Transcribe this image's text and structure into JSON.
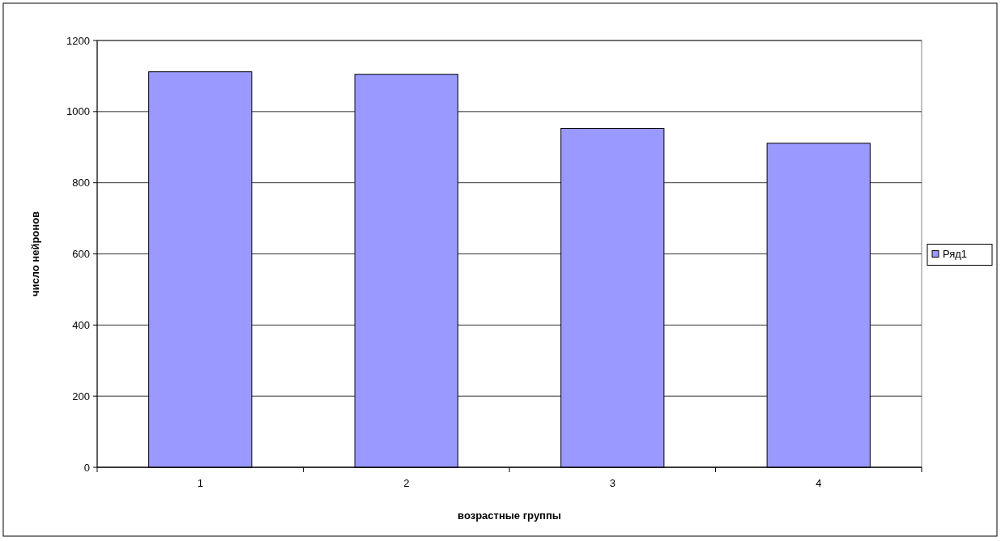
{
  "chart_data": {
    "type": "bar",
    "xlabel": "возрастные группы",
    "ylabel": "число нейронов",
    "categories": [
      "1",
      "2",
      "3",
      "4"
    ],
    "series": [
      {
        "name": "Ряд1",
        "color": "#9999ff",
        "values": [
          1112,
          1105,
          953,
          911
        ]
      }
    ],
    "ylim": [
      0,
      1200
    ],
    "yticks": [
      0,
      200,
      400,
      600,
      800,
      1000,
      1200
    ],
    "grid": "y",
    "legend": "right"
  }
}
